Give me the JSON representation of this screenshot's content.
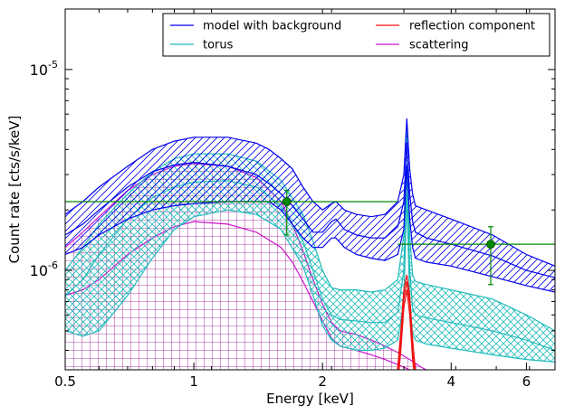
{
  "chart_data": {
    "type": "line",
    "xlabel": "Energy [keV]",
    "ylabel": "Count rate [cts/s/keV]",
    "x_scale": "log",
    "y_scale": "log",
    "xlim": [
      0.5,
      7.0
    ],
    "ylim": [
      3.2e-07,
      2e-05
    ],
    "x_ticks": [
      {
        "value": 0.5,
        "label": "0.5"
      },
      {
        "value": 1,
        "label": "1"
      },
      {
        "value": 2,
        "label": "2"
      },
      {
        "value": 4,
        "label": "4"
      },
      {
        "value": 6,
        "label": "6"
      }
    ],
    "y_ticks": [
      {
        "value": 1e-06,
        "base": "10",
        "exp": "-6"
      },
      {
        "value": 1e-05,
        "base": "10",
        "exp": "-5"
      }
    ],
    "legend": {
      "placement": "top-right",
      "entries": [
        {
          "label": "model with background",
          "color": "#0000ee"
        },
        {
          "label": "torus",
          "color": "#22bbbb"
        },
        {
          "label": "reflection component",
          "color": "#ee1111"
        },
        {
          "label": "scattering",
          "color": "#cc11cc"
        }
      ]
    },
    "series": [
      {
        "name": "model with background",
        "color": "#0000ee",
        "hatch": "diagonal",
        "x": [
          0.5,
          0.55,
          0.6,
          0.7,
          0.8,
          0.9,
          1.0,
          1.2,
          1.4,
          1.5,
          1.6,
          1.7,
          1.8,
          1.9,
          2.0,
          2.1,
          2.15,
          2.25,
          2.4,
          2.6,
          2.8,
          3.0,
          3.1,
          3.15,
          3.2,
          3.25,
          3.3,
          3.5,
          4.0,
          5.0,
          6.0,
          7.0
        ],
        "upper": [
          1.9e-06,
          2.2e-06,
          2.6e-06,
          3.3e-06,
          4e-06,
          4.4e-06,
          4.6e-06,
          4.6e-06,
          4.3e-06,
          4e-06,
          3.6e-06,
          3.2e-06,
          2.6e-06,
          2.2e-06,
          2e-06,
          2.15e-06,
          2.2e-06,
          2e-06,
          1.9e-06,
          1.85e-06,
          1.9e-06,
          2.2e-06,
          3e-06,
          5.7e-06,
          3.2e-06,
          2.4e-06,
          2.1e-06,
          2e-06,
          1.8e-06,
          1.5e-06,
          1.2e-06,
          1.05e-06
        ],
        "mid": [
          1.5e-06,
          1.7e-06,
          2e-06,
          2.6e-06,
          3.1e-06,
          3.35e-06,
          3.45e-06,
          3.3e-06,
          3e-06,
          2.7e-06,
          2.4e-06,
          2.1e-06,
          1.8e-06,
          1.55e-06,
          1.55e-06,
          1.75e-06,
          1.8e-06,
          1.6e-06,
          1.5e-06,
          1.45e-06,
          1.45e-06,
          1.65e-06,
          2.2e-06,
          4.3e-06,
          2.4e-06,
          1.75e-06,
          1.55e-06,
          1.45e-06,
          1.35e-06,
          1.18e-06,
          1e-06,
          9.2e-07
        ],
        "lower": [
          1.2e-06,
          1.3e-06,
          1.5e-06,
          1.8e-06,
          2e-06,
          2.1e-06,
          2.15e-06,
          2.2e-06,
          2.2e-06,
          2.2e-06,
          2e-06,
          1.7e-06,
          1.45e-06,
          1.3e-06,
          1.3e-06,
          1.45e-06,
          1.45e-06,
          1.3e-06,
          1.2e-06,
          1.15e-06,
          1.12e-06,
          1.2e-06,
          1.6e-06,
          3.3e-06,
          1.8e-06,
          1.3e-06,
          1.15e-06,
          1.1e-06,
          1.05e-06,
          9.3e-07,
          8.4e-07,
          7.8e-07
        ]
      },
      {
        "name": "torus",
        "color": "#22bbbb",
        "hatch": "cross",
        "x": [
          0.5,
          0.55,
          0.6,
          0.7,
          0.8,
          0.9,
          1.0,
          1.2,
          1.4,
          1.6,
          1.8,
          1.9,
          2.0,
          2.1,
          2.2,
          2.4,
          2.6,
          2.8,
          3.0,
          3.1,
          3.15,
          3.2,
          3.25,
          3.3,
          3.5,
          4.0,
          5.0,
          6.0,
          7.0
        ],
        "upper": [
          1e-06,
          1.3e-06,
          1.7e-06,
          2.4e-06,
          3.1e-06,
          3.6e-06,
          3.8e-06,
          3.8e-06,
          3.5e-06,
          2.8e-06,
          1.9e-06,
          1.4e-06,
          1e-06,
          8.2e-07,
          8e-07,
          8e-07,
          7.8e-07,
          8e-07,
          9e-07,
          1.5e-06,
          5e-06,
          1.5e-06,
          9.5e-07,
          8.8e-07,
          8.5e-07,
          8e-07,
          7.2e-07,
          6e-07,
          5e-07
        ],
        "mid": [
          7.5e-07,
          9e-07,
          1.2e-06,
          1.8e-06,
          2.3e-06,
          2.6e-06,
          2.75e-06,
          2.8e-06,
          2.6e-06,
          2.1e-06,
          1.4e-06,
          1e-06,
          7.2e-07,
          6e-07,
          5.7e-07,
          5.6e-07,
          5.5e-07,
          5.5e-07,
          6.2e-07,
          1e-06,
          3.3e-06,
          1e-06,
          6.5e-07,
          6e-07,
          5.8e-07,
          5.5e-07,
          5e-07,
          4.5e-07,
          4e-07
        ],
        "lower": [
          5e-07,
          4.7e-07,
          5e-07,
          7.5e-07,
          1.15e-06,
          1.6e-06,
          1.85e-06,
          2e-06,
          1.9e-06,
          1.6e-06,
          1.05e-06,
          7.5e-07,
          5.3e-07,
          4.5e-07,
          4.2e-07,
          4e-07,
          4e-07,
          4.1e-07,
          4.5e-07,
          7e-07,
          2.4e-06,
          7e-07,
          4.8e-07,
          4.5e-07,
          4.3e-07,
          4.1e-07,
          3.8e-07,
          3.6e-07,
          3.5e-07
        ]
      },
      {
        "name": "scattering",
        "color": "#cc11cc",
        "hatch": "grid",
        "x": [
          0.5,
          0.55,
          0.6,
          0.7,
          0.8,
          0.9,
          1.0,
          1.2,
          1.4,
          1.6,
          1.7,
          1.8,
          1.9,
          2.0,
          2.1,
          2.2,
          2.4,
          2.6,
          2.8,
          3.0,
          3.2,
          3.4,
          3.6
        ],
        "upper": [
          1.3e-06,
          1.55e-06,
          1.85e-06,
          2.5e-06,
          3e-06,
          3.3e-06,
          3.4e-06,
          3.3e-06,
          2.9e-06,
          2.2e-06,
          1.7e-06,
          1.25e-06,
          9e-07,
          6.8e-07,
          5.5e-07,
          5e-07,
          4.8e-07,
          4.5e-07,
          4.2e-07,
          3.9e-07,
          3.6e-07,
          3.3e-07,
          3.1e-07
        ],
        "mid": [
          7.5e-07,
          8e-07,
          9e-07,
          1.2e-06,
          1.45e-06,
          1.65e-06,
          1.75e-06,
          1.7e-06,
          1.55e-06,
          1.3e-06,
          1.1e-06,
          8.8e-07,
          7e-07,
          5.6e-07,
          4.6e-07,
          4.2e-07,
          4e-07,
          3.8e-07,
          3.6e-07,
          3.4e-07,
          3.2e-07,
          3e-07,
          2.8e-07
        ],
        "lower": [
          3e-07,
          3e-07,
          3e-07,
          3e-07,
          3e-07,
          3e-07,
          3e-07,
          3e-07,
          3e-07,
          3e-07,
          3e-07,
          3e-07,
          3e-07,
          3e-07,
          3e-07,
          3e-07,
          3e-07,
          3e-07,
          3e-07,
          3e-07,
          3e-07,
          3e-07,
          3e-07
        ]
      },
      {
        "name": "reflection component",
        "color": "#ee1111",
        "hatch": "none",
        "x": [
          2.95,
          3.0,
          3.05,
          3.1,
          3.15,
          3.2,
          3.25,
          3.3,
          3.35
        ],
        "upper": [
          2.5e-07,
          3.3e-07,
          5e-07,
          8e-07,
          9.5e-07,
          7.5e-07,
          4.5e-07,
          3.2e-07,
          2.5e-07
        ],
        "mid": [
          2.5e-07,
          3e-07,
          4.5e-07,
          7.2e-07,
          8.8e-07,
          6.8e-07,
          4e-07,
          2.9e-07,
          2.5e-07
        ],
        "lower": [
          2.5e-07,
          2.7e-07,
          4e-07,
          6.5e-07,
          8e-07,
          6e-07,
          3.6e-07,
          2.7e-07,
          2.5e-07
        ]
      }
    ],
    "data_points": {
      "color": "#008800",
      "points": [
        {
          "x": 1.65,
          "xlo": 0.5,
          "xhi": 3.0,
          "y": 2.2e-06,
          "ylo": 1.5e-06,
          "yhi": 2.5e-06
        },
        {
          "x": 4.95,
          "xlo": 3.0,
          "xhi": 7.0,
          "y": 1.35e-06,
          "ylo": 8.5e-07,
          "yhi": 1.65e-06
        }
      ]
    }
  }
}
